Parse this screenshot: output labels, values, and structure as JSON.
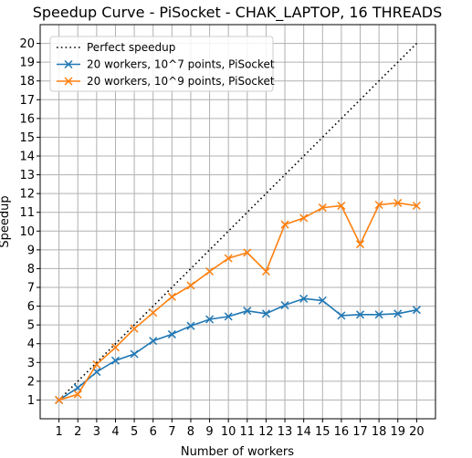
{
  "chart_data": {
    "type": "line",
    "title": "Speedup Curve - PiSocket - CHAK_LAPTOP, 16 THREADS",
    "xlabel": "Number of workers",
    "ylabel": "Speedup",
    "xlim": [
      0,
      21
    ],
    "ylim": [
      0,
      21
    ],
    "xticks": [
      "1",
      "2",
      "3",
      "4",
      "5",
      "6",
      "7",
      "8",
      "9",
      "10",
      "11",
      "12",
      "13",
      "14",
      "15",
      "16",
      "17",
      "18",
      "19",
      "20"
    ],
    "yticks": [
      "1",
      "2",
      "3",
      "4",
      "5",
      "6",
      "7",
      "8",
      "9",
      "10",
      "11",
      "12",
      "13",
      "14",
      "15",
      "16",
      "17",
      "18",
      "19",
      "20"
    ],
    "grid": true,
    "legend_position": "upper-left",
    "x": [
      1,
      2,
      3,
      4,
      5,
      6,
      7,
      8,
      9,
      10,
      11,
      12,
      13,
      14,
      15,
      16,
      17,
      18,
      19,
      20
    ],
    "series": [
      {
        "name": "Perfect speedup",
        "color": "#000000",
        "style": "dotted",
        "marker": "none",
        "values": [
          1,
          2,
          3,
          4,
          5,
          6,
          7,
          8,
          9,
          10,
          11,
          12,
          13,
          14,
          15,
          16,
          17,
          18,
          19,
          20
        ]
      },
      {
        "name": "20 workers, 10^7 points, PiSocket",
        "color": "#1f77b4",
        "style": "solid",
        "marker": "x",
        "values": [
          1.0,
          1.65,
          2.5,
          3.1,
          3.45,
          4.15,
          4.5,
          4.95,
          5.3,
          5.45,
          5.75,
          5.6,
          6.05,
          6.4,
          6.3,
          5.5,
          5.55,
          5.55,
          5.6,
          5.8
        ]
      },
      {
        "name": "20 workers, 10^9 points, PiSocket",
        "color": "#ff7f0e",
        "style": "solid",
        "marker": "x",
        "values": [
          1.0,
          1.3,
          2.9,
          3.8,
          4.8,
          5.65,
          6.5,
          7.1,
          7.85,
          8.55,
          8.85,
          7.85,
          10.35,
          10.7,
          11.25,
          11.35,
          9.3,
          11.4,
          11.5,
          11.35
        ]
      }
    ]
  }
}
